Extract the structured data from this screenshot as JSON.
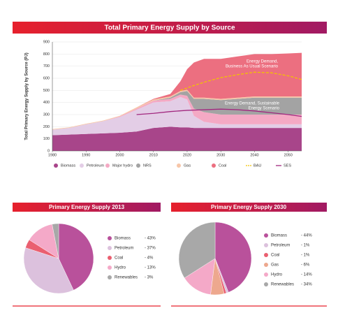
{
  "chart_data": [
    {
      "type": "area",
      "title": "Total Primary Energy Supply by Source",
      "ylabel": "Total Primary Energy Supply by Source (PJ)",
      "x": [
        1980,
        1985,
        1990,
        1995,
        2000,
        2005,
        2010,
        2015,
        2018,
        2020,
        2022,
        2025,
        2030,
        2035,
        2040,
        2045,
        2050,
        2054
      ],
      "xlim": [
        1980,
        2054
      ],
      "xticks": [
        1980,
        1990,
        2000,
        2010,
        2020,
        2030,
        2040,
        2050
      ],
      "ylim": [
        0,
        900
      ],
      "yticks": [
        0,
        100,
        200,
        300,
        400,
        500,
        600,
        700,
        800,
        900
      ],
      "series": [
        {
          "name": "Biomass",
          "color": "#a8458a",
          "values": [
            130,
            135,
            140,
            145,
            150,
            160,
            190,
            200,
            195,
            195,
            190,
            190,
            190,
            190,
            190,
            190,
            190,
            190
          ]
        },
        {
          "name": "Petroleum",
          "color": "#e3cde6",
          "values": [
            45,
            55,
            80,
            100,
            130,
            180,
            210,
            210,
            250,
            230,
            100,
            50,
            30,
            30,
            30,
            30,
            30,
            30
          ]
        },
        {
          "name": "Major hydro",
          "color": "#f4a9c4",
          "values": [
            0,
            0,
            0,
            0,
            5,
            10,
            15,
            20,
            20,
            30,
            60,
            80,
            80,
            80,
            80,
            80,
            80,
            80
          ]
        },
        {
          "name": "NRS",
          "color": "#a3a3a3",
          "values": [
            0,
            0,
            0,
            0,
            0,
            0,
            0,
            10,
            20,
            40,
            80,
            110,
            120,
            130,
            140,
            140,
            140,
            140
          ]
        },
        {
          "name": "Gas",
          "color": "#f7c6a8",
          "values": [
            5,
            5,
            5,
            5,
            5,
            10,
            10,
            10,
            10,
            10,
            10,
            10,
            10,
            10,
            10,
            10,
            10,
            10
          ]
        },
        {
          "name": "Coal",
          "color": "#ec6f80",
          "values": [
            0,
            0,
            0,
            0,
            0,
            0,
            5,
            20,
            80,
            170,
            290,
            320,
            330,
            340,
            350,
            350,
            355,
            360
          ]
        },
        {
          "name": "BAU",
          "color": "#f2c200",
          "dash": true,
          "x": [
            2018,
            2022,
            2026,
            2030,
            2035,
            2040,
            2045,
            2050,
            2054
          ],
          "values": [
            500,
            540,
            575,
            605,
            630,
            650,
            645,
            620,
            590
          ]
        },
        {
          "name": "SES",
          "color": "#a2287f",
          "x": [
            2005,
            2010,
            2015,
            2020,
            2025,
            2030,
            2035,
            2040,
            2045,
            2050,
            2054
          ],
          "values": [
            300,
            310,
            325,
            335,
            340,
            345,
            340,
            330,
            315,
            300,
            285
          ]
        }
      ],
      "annotations": [
        {
          "lines": [
            "Energy Demand,",
            "Business As Usual Scenario"
          ]
        },
        {
          "lines": [
            "Energy Demand, Sustainable",
            "Energy Scenario"
          ]
        }
      ]
    },
    {
      "type": "pie",
      "title": "Primary Energy Supply 2013",
      "categories": [
        "Biomass",
        "Petroleum",
        "Coal",
        "Hydro",
        "Renewables"
      ],
      "values": [
        43,
        37,
        4,
        13,
        3
      ],
      "value_labels": [
        "- 43%",
        "- 37%",
        "- 4%",
        "- 13%",
        "- 3%"
      ],
      "colors": [
        "#b9519b",
        "#dcc1dd",
        "#ea5f70",
        "#f4a9c8",
        "#a8a8a8"
      ]
    },
    {
      "type": "pie",
      "title": "Primary Energy Supply 2030",
      "categories": [
        "Biomass",
        "Petroleum",
        "Coal",
        "Gas",
        "Hydro",
        "Renewables"
      ],
      "values": [
        44,
        1,
        1,
        6,
        14,
        34
      ],
      "value_labels": [
        "- 44%",
        "- 1%",
        "- 1%",
        "- 6%",
        "- 14%",
        "- 34%"
      ],
      "colors": [
        "#b9519b",
        "#dcc1dd",
        "#ea5f70",
        "#eda88e",
        "#f4a9c8",
        "#a8a8a8"
      ]
    }
  ]
}
